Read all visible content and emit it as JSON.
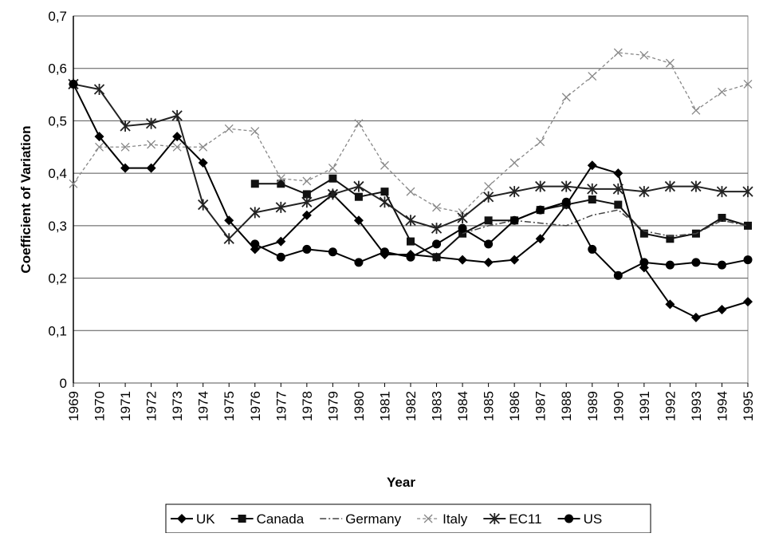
{
  "chart_data": {
    "type": "line",
    "x_label": "Year",
    "y_label": "Coefficient of Variation",
    "categories": [
      "1969",
      "1970",
      "1971",
      "1972",
      "1973",
      "1974",
      "1975",
      "1976",
      "1977",
      "1978",
      "1979",
      "1980",
      "1981",
      "1982",
      "1983",
      "1984",
      "1985",
      "1986",
      "1987",
      "1988",
      "1989",
      "1990",
      "1991",
      "1992",
      "1993",
      "1994",
      "1995"
    ],
    "ylim": [
      0,
      0.7
    ],
    "yticks": [
      0,
      {
        "value": 0.1,
        "label": "0,1"
      },
      {
        "value": 0.2,
        "label": "0,2"
      },
      {
        "value": 0.3,
        "label": "0,3"
      },
      {
        "value": 0.4,
        "label": "0,4"
      },
      {
        "value": 0.5,
        "label": "0,5"
      },
      {
        "value": 0.6,
        "label": "0,6"
      },
      {
        "value": 0.7,
        "label": "0,7"
      }
    ],
    "grid": true,
    "legend": "bottom",
    "series": [
      {
        "name": "UK",
        "color": "#000000",
        "values": [
          0.57,
          0.47,
          0.41,
          0.41,
          0.47,
          0.42,
          0.31,
          0.255,
          0.27,
          0.32,
          0.36,
          0.31,
          0.245,
          0.245,
          0.24,
          0.235,
          0.23,
          0.235,
          0.275,
          0.34,
          0.415,
          0.4,
          0.22,
          0.15,
          0.125,
          0.14,
          0.155
        ]
      },
      {
        "name": "Canada",
        "color": "#111111",
        "values": [
          null,
          null,
          null,
          null,
          null,
          null,
          null,
          0.38,
          0.38,
          0.36,
          0.39,
          0.355,
          0.365,
          0.27,
          0.24,
          0.285,
          0.31,
          0.31,
          0.33,
          0.34,
          0.35,
          0.34,
          0.285,
          0.275,
          0.285,
          0.315,
          0.3
        ]
      },
      {
        "name": "Germany",
        "color": "#444444",
        "values": [
          null,
          null,
          null,
          null,
          null,
          null,
          null,
          null,
          null,
          null,
          null,
          null,
          null,
          null,
          null,
          0.285,
          0.3,
          0.31,
          0.305,
          0.3,
          0.32,
          0.33,
          0.29,
          0.28,
          0.285,
          0.31,
          0.3
        ]
      },
      {
        "name": "Italy",
        "color": "#888888",
        "values": [
          0.38,
          0.45,
          0.45,
          0.455,
          0.45,
          0.45,
          0.485,
          0.48,
          0.39,
          0.385,
          0.41,
          0.495,
          0.415,
          0.365,
          0.335,
          0.325,
          0.375,
          0.42,
          0.46,
          0.545,
          0.585,
          0.63,
          0.625,
          0.61,
          0.52,
          0.555,
          0.57
        ]
      },
      {
        "name": "EC11",
        "color": "#222222",
        "values": [
          0.57,
          0.56,
          0.49,
          0.495,
          0.51,
          0.34,
          0.275,
          0.325,
          0.335,
          0.345,
          0.36,
          0.375,
          0.345,
          0.31,
          0.295,
          0.315,
          0.355,
          0.365,
          0.375,
          0.375,
          0.37,
          0.37,
          0.365,
          0.375,
          0.375,
          0.365,
          0.365
        ]
      },
      {
        "name": "US",
        "color": "#000000",
        "values": [
          0.57,
          null,
          null,
          null,
          null,
          null,
          null,
          0.265,
          0.24,
          0.255,
          0.25,
          0.23,
          0.25,
          0.24,
          0.265,
          0.295,
          0.265,
          0.31,
          0.33,
          0.345,
          0.255,
          0.205,
          0.23,
          0.225,
          0.23,
          0.225,
          0.235
        ]
      }
    ]
  }
}
